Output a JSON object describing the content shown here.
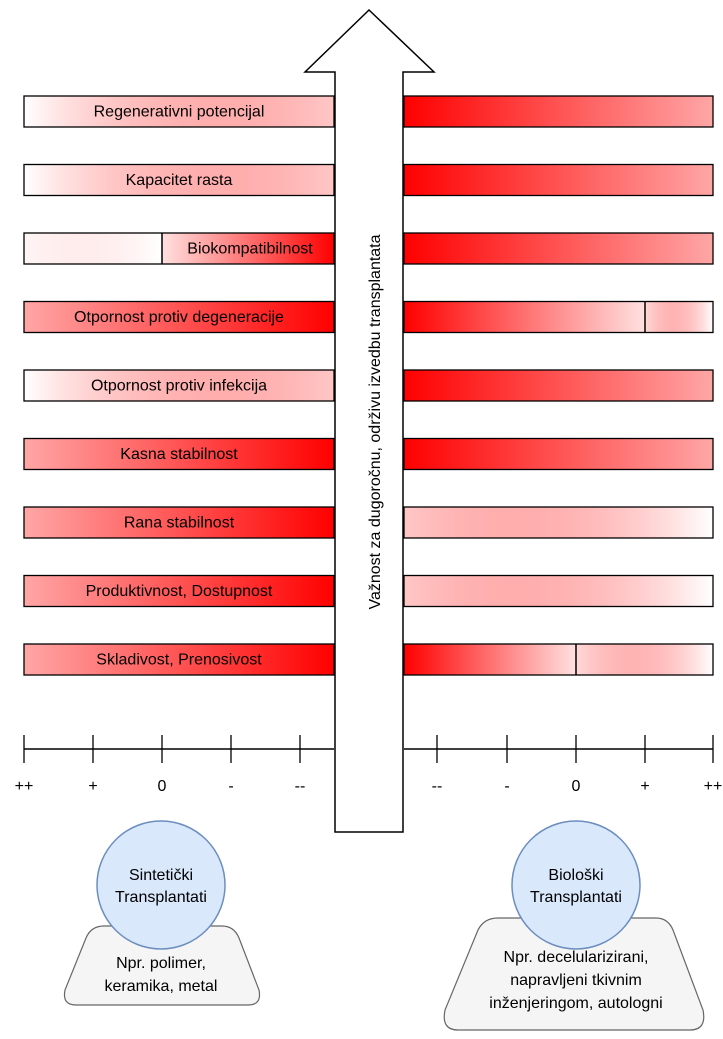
{
  "axis_title": "Važnost za dugoročnu, održivu izvedbu transplantata",
  "scale_labels": {
    "left": [
      "++",
      "+",
      "0",
      "-",
      "--"
    ],
    "right": [
      "--",
      "-",
      "0",
      "+",
      "++"
    ]
  },
  "rows": [
    {
      "label": "Regenerativni potencijal",
      "left": "faint",
      "right": "strong"
    },
    {
      "label": "Kapacitet rasta",
      "left": "faint",
      "right": "strong"
    },
    {
      "label": "Biokompatibilnost",
      "left": "to-zero",
      "right": "strong"
    },
    {
      "label": "Otpornost protiv degeneracije",
      "left": "strong",
      "right": "to-plus"
    },
    {
      "label": "Otpornost protiv infekcija",
      "left": "faint",
      "right": "strong"
    },
    {
      "label": "Kasna stabilnost",
      "left": "strong",
      "right": "strong"
    },
    {
      "label": "Rana stabilnost",
      "left": "strong",
      "right": "faint"
    },
    {
      "label": "Produktivnost, Dostupnost",
      "left": "strong",
      "right": "faint"
    },
    {
      "label": "Skladivost, Prenosivost",
      "left": "strong",
      "right": "to-zero"
    }
  ],
  "synthetic": {
    "title_line1": "Sintetički",
    "title_line2": "Transplantati",
    "example_line1": "Npr. polimer,",
    "example_line2": "keramika, metal"
  },
  "biological": {
    "title_line1": "Biološki",
    "title_line2": "Transplantati",
    "example_line1": "Npr. decelularizirani,",
    "example_line2": "napravljeni tkivnim",
    "example_line3": "inženjeringom, autologni"
  },
  "colors": {
    "bar_strong": "#ff0000",
    "bar_white": "#ffffff",
    "circle_fill": "#dae8fc",
    "circle_stroke": "#6c8ebf",
    "plate_fill": "#f5f5f5",
    "plate_stroke": "#666666",
    "outline": "#000000"
  }
}
